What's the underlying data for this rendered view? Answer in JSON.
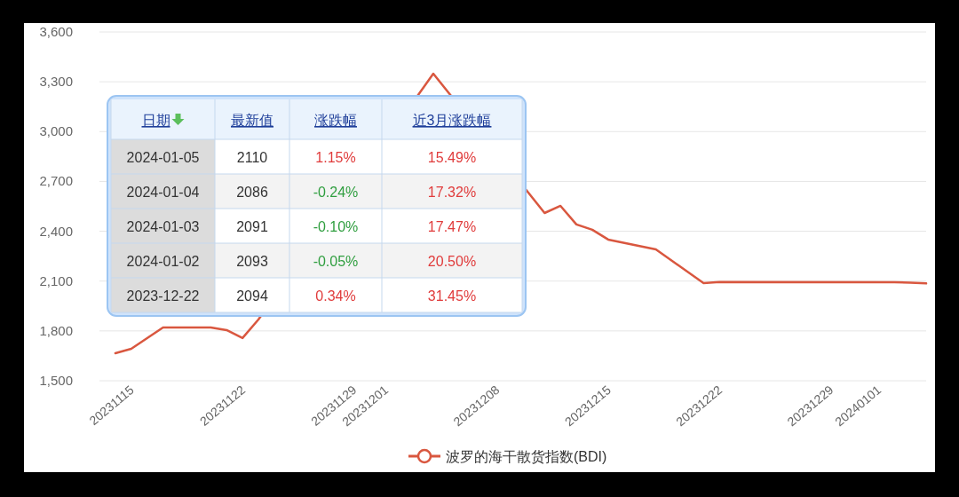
{
  "chart_data": [
    {
      "type": "line",
      "x": [
        "2023-11-14",
        "2023-11-15",
        "2023-11-17",
        "2023-11-20",
        "2023-11-21",
        "2023-11-22",
        "2023-11-23",
        "2023-12-04",
        "2023-12-11",
        "2023-12-12",
        "2023-12-13",
        "2023-12-14",
        "2023-12-15",
        "2023-12-18",
        "2023-12-21",
        "2023-12-22",
        "2024-01-02",
        "2024-01-03",
        "2024-01-04"
      ],
      "series": [
        {
          "name": "波罗的海干散货指数(BDI)",
          "color": "#d9573f",
          "values": [
            1666,
            1692,
            1821,
            1821,
            1805,
            1757,
            1869,
            3349,
            2510,
            2553,
            2441,
            2409,
            2350,
            2291,
            2088,
            2094,
            2093,
            2091,
            2086
          ]
        }
      ],
      "xlim": [
        "2023-11-13",
        "2024-01-04"
      ],
      "xticks": [
        {
          "value": "2023-11-15",
          "label": "20231115"
        },
        {
          "value": "2023-11-22",
          "label": "20231122"
        },
        {
          "value": "2023-11-29",
          "label": "20231129"
        },
        {
          "value": "2023-12-01",
          "label": "20231201"
        },
        {
          "value": "2023-12-08",
          "label": "20231208"
        },
        {
          "value": "2023-12-15",
          "label": "20231215"
        },
        {
          "value": "2023-12-22",
          "label": "20231222"
        },
        {
          "value": "2023-12-29",
          "label": "20231229"
        },
        {
          "value": "2024-01-01",
          "label": "20240101"
        }
      ],
      "ylim": [
        1500,
        3600
      ],
      "yticks": [
        {
          "value": 1500,
          "label": "1,500"
        },
        {
          "value": 1800,
          "label": "1,800"
        },
        {
          "value": 2100,
          "label": "2,100"
        },
        {
          "value": 2400,
          "label": "2,400"
        },
        {
          "value": 2700,
          "label": "2,700"
        },
        {
          "value": 3000,
          "label": "3,000"
        },
        {
          "value": 3300,
          "label": "3,300"
        },
        {
          "value": 3600,
          "label": "3,600"
        }
      ],
      "grid": "y",
      "legend": "bottom",
      "marker": "none",
      "line_style": "solid"
    },
    {
      "type": "other",
      "categories": [
        "日期",
        "最新值",
        "涨跌幅",
        "近3月涨跌幅"
      ],
      "annotations": [
        "2024-01-05",
        "2110",
        "1.15%",
        "15.49%",
        "2024-01-04",
        "2086",
        "-0.24%",
        "17.32%",
        "2024-01-03",
        "2091",
        "-0.10%",
        "17.47%",
        "2024-01-02",
        "2093",
        "-0.05%",
        "20.50%",
        "2023-12-22",
        "2094",
        "0.34%",
        "31.45%"
      ],
      "colors": [
        "#333333",
        "#333333",
        "#e03b3b",
        "#e03b3b",
        "#333333",
        "#333333",
        "#2f9e3f",
        "#e03b3b",
        "#333333",
        "#333333",
        "#2f9e3f",
        "#e03b3b",
        "#333333",
        "#333333",
        "#2f9e3f",
        "#e03b3b",
        "#333333",
        "#333333",
        "#e03b3b",
        "#e03b3b"
      ]
    }
  ]
}
